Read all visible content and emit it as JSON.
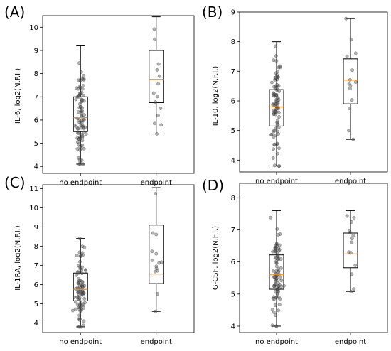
{
  "chart_data": [
    {
      "panel": "(A)",
      "type": "box",
      "ylabel": "IL-6, log2(N.F.I.)",
      "categories": [
        "no endpoint",
        "endpoint"
      ],
      "ylim": [
        3.7,
        10.5
      ],
      "yticks": [
        4,
        5,
        6,
        7,
        8,
        9,
        10
      ],
      "boxes": [
        {
          "whisker_low": 4.1,
          "q1": 5.5,
          "median": 6.1,
          "q3": 7.0,
          "whisker_high": 9.2
        },
        {
          "whisker_low": 5.4,
          "q1": 6.75,
          "median": 7.75,
          "q3": 9.0,
          "whisker_high": 10.45
        }
      ]
    },
    {
      "panel": "(B)",
      "type": "box",
      "ylabel": "IL-10, log2(N.F.I.)",
      "categories": [
        "no endpoint",
        "endpoint"
      ],
      "ylim": [
        3.6,
        9.0
      ],
      "yticks": [
        4,
        5,
        6,
        7,
        8,
        9
      ],
      "boxes": [
        {
          "whisker_low": 3.8,
          "q1": 5.15,
          "median": 5.8,
          "q3": 6.38,
          "whisker_high": 8.0
        },
        {
          "whisker_low": 4.7,
          "q1": 5.9,
          "median": 6.7,
          "q3": 7.42,
          "whisker_high": 8.78
        }
      ]
    },
    {
      "panel": "(C)",
      "type": "box",
      "ylabel": "IL-1RA, log2(N.F.I.)",
      "categories": [
        "no endpoint",
        "endpoint"
      ],
      "ylim": [
        3.5,
        11.2
      ],
      "yticks": [
        4,
        5,
        6,
        7,
        8,
        9,
        10,
        11
      ],
      "boxes": [
        {
          "whisker_low": 3.8,
          "q1": 5.15,
          "median": 5.75,
          "q3": 6.6,
          "whisker_high": 8.4
        },
        {
          "whisker_low": 4.6,
          "q1": 6.05,
          "median": 6.55,
          "q3": 9.1,
          "whisker_high": 11.05
        }
      ]
    },
    {
      "panel": "(D)",
      "type": "box",
      "ylabel": "G-CSF, log2(N.F.I.)",
      "categories": [
        "no endpoint",
        "endpoint"
      ],
      "ylim": [
        3.8,
        8.45
      ],
      "yticks": [
        4,
        5,
        6,
        7,
        8
      ],
      "boxes": [
        {
          "whisker_low": 4.0,
          "q1": 5.15,
          "median": 5.6,
          "q3": 6.22,
          "whisker_high": 7.6
        },
        {
          "whisker_low": 5.08,
          "q1": 5.82,
          "median": 6.25,
          "q3": 6.9,
          "whisker_high": 7.6
        }
      ]
    }
  ],
  "colors": {
    "median": "#ff8c1a",
    "points": "#555555"
  }
}
